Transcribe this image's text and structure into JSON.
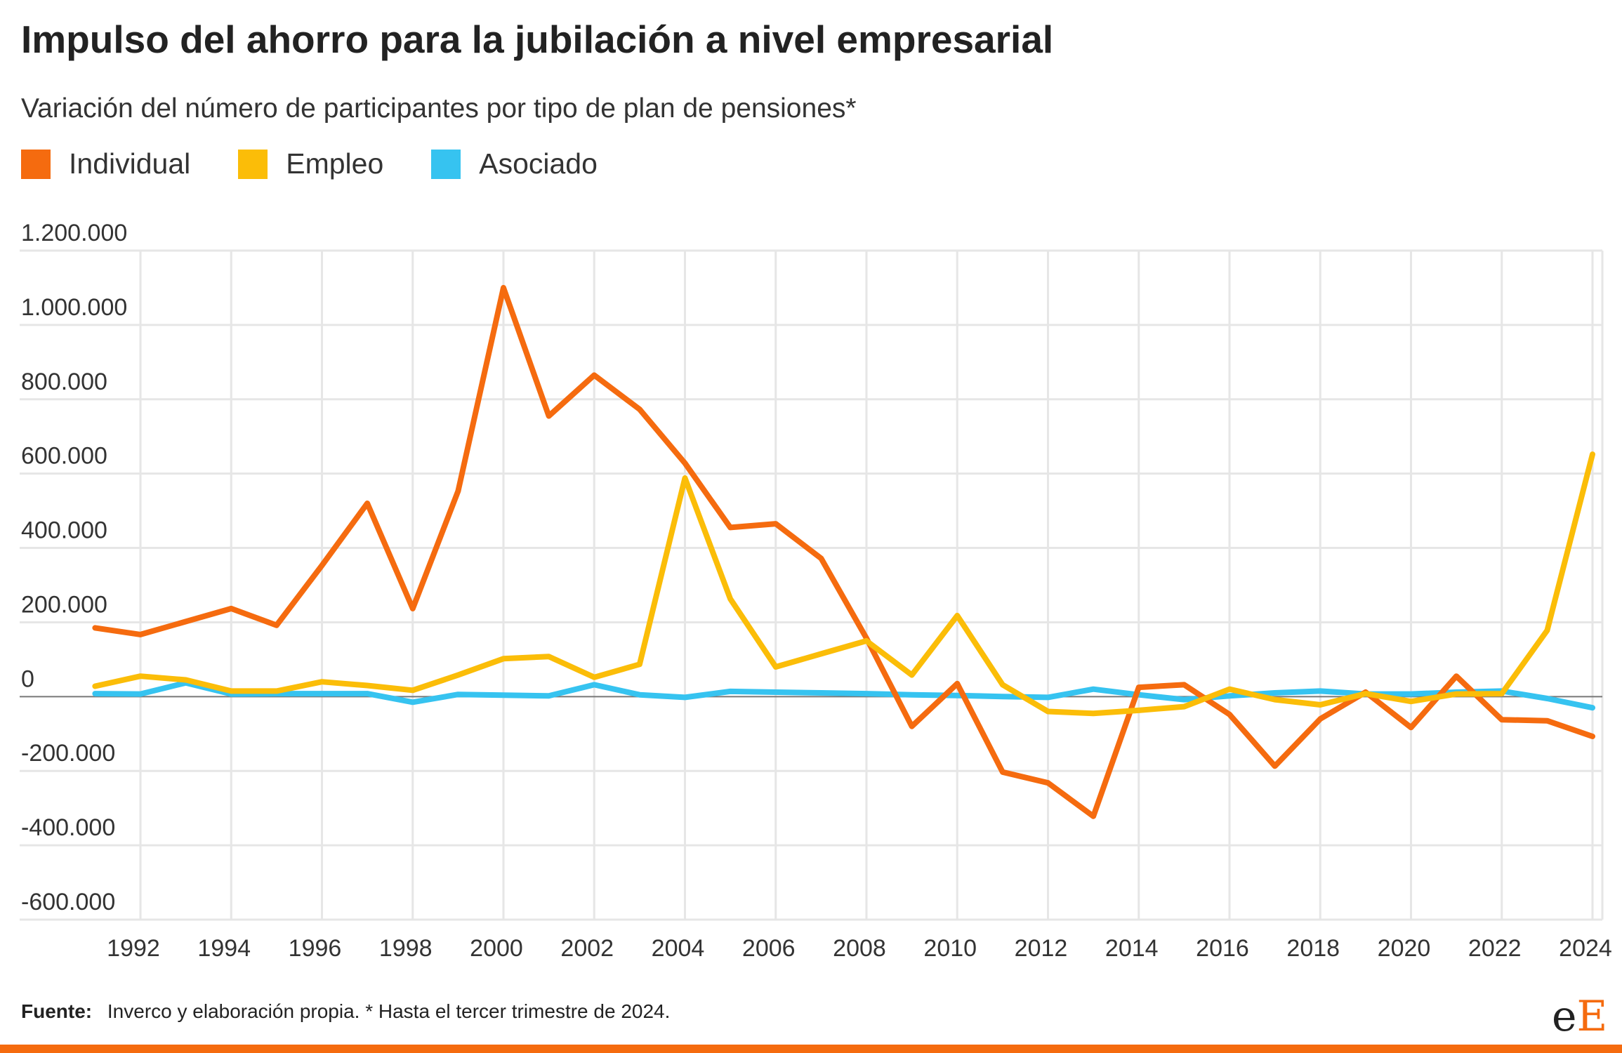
{
  "chart_data": {
    "type": "line",
    "title": "Impulso del ahorro para la jubilación a nivel empresarial",
    "subtitle": "Variación del número de participantes por tipo de plan de pensiones*",
    "xlabel": "",
    "ylabel": "",
    "x": [
      1991,
      1992,
      1993,
      1994,
      1995,
      1996,
      1997,
      1998,
      1999,
      2000,
      2001,
      2002,
      2003,
      2004,
      2005,
      2006,
      2007,
      2008,
      2009,
      2010,
      2011,
      2012,
      2013,
      2014,
      2015,
      2016,
      2017,
      2018,
      2019,
      2020,
      2021,
      2022,
      2023,
      2024
    ],
    "x_ticks": [
      1992,
      1994,
      1996,
      1998,
      2000,
      2002,
      2004,
      2006,
      2008,
      2010,
      2012,
      2014,
      2016,
      2018,
      2020,
      2022,
      2024
    ],
    "x_tick_labels": [
      "1992",
      "1994",
      "1996",
      "1998",
      "2000",
      "2002",
      "2004",
      "2006",
      "2008",
      "2010",
      "2012",
      "2014",
      "2016",
      "2018",
      "2020",
      "2022",
      "2024"
    ],
    "xlim": [
      1990.1,
      2024.6
    ],
    "ylim": [
      -600000,
      1200000
    ],
    "y_ticks": [
      -600000,
      -400000,
      -200000,
      0,
      200000,
      400000,
      600000,
      800000,
      1000000,
      1200000
    ],
    "y_tick_labels": [
      "-600.000",
      "-400.000",
      "-200.000",
      "0",
      "200.000",
      "400.000",
      "600.000",
      "800.000",
      "1.000.000",
      "1.200.000"
    ],
    "grid": true,
    "legend_position": "top-left",
    "series": [
      {
        "name": "Individual",
        "color": "#f56b0f",
        "values": [
          185000,
          167000,
          202000,
          237000,
          192000,
          353000,
          520000,
          237000,
          553000,
          1100000,
          755000,
          865000,
          773000,
          628000,
          455000,
          465000,
          372000,
          157000,
          -80000,
          35000,
          -203000,
          -232000,
          -322000,
          25000,
          32000,
          -48000,
          -187000,
          -60000,
          12000,
          -83000,
          55000,
          -62000,
          -65000,
          -107000
        ]
      },
      {
        "name": "Empleo",
        "color": "#fbbd08",
        "values": [
          28000,
          55000,
          45000,
          15000,
          15000,
          40000,
          30000,
          17000,
          58000,
          102000,
          108000,
          52000,
          87000,
          588000,
          263000,
          80000,
          115000,
          150000,
          58000,
          218000,
          32000,
          -40000,
          -45000,
          -37000,
          -27000,
          20000,
          -8000,
          -22000,
          8000,
          -13000,
          7000,
          8000,
          178000,
          652000
        ]
      },
      {
        "name": "Asociado",
        "color": "#36c3f0",
        "values": [
          8000,
          7000,
          37000,
          7000,
          8000,
          8000,
          8000,
          -15000,
          6000,
          4000,
          2000,
          32000,
          5000,
          -2000,
          14000,
          12000,
          10000,
          8000,
          5000,
          3000,
          0,
          -2000,
          20000,
          5000,
          -8000,
          2000,
          10000,
          15000,
          7000,
          7000,
          12000,
          15000,
          -5000,
          -30000
        ]
      }
    ]
  },
  "footer": {
    "source_label": "Fuente:",
    "source_text": "Inverco y elaboración propia. * Hasta el tercer trimestre de 2024."
  },
  "logo": {
    "small": "e",
    "big": "E"
  }
}
